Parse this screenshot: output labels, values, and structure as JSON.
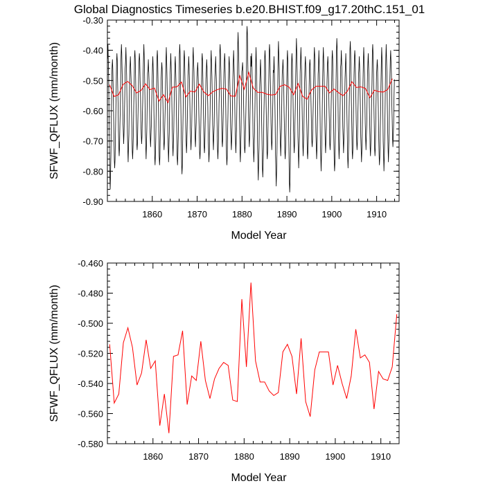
{
  "title": "Global Diagnostics Timeseries b.e20.BHIST.f09_g17.20thC.151_01",
  "chart_data": [
    {
      "type": "line",
      "xlabel": "Model Year",
      "ylabel": "SFWF_QFLUX (mm/month)",
      "xlim": [
        1850.0,
        1915.0
      ],
      "ylim": [
        -0.9,
        -0.3
      ],
      "x_ticks": [
        1860,
        1870,
        1880,
        1890,
        1900,
        1910
      ],
      "y_ticks": [
        -0.3,
        -0.4,
        -0.5,
        -0.6,
        -0.7,
        -0.8,
        -0.9
      ],
      "y_tick_labels": [
        "-0.30",
        "-0.40",
        "-0.50",
        "-0.60",
        "-0.70",
        "-0.80",
        "-0.90"
      ],
      "grid": false,
      "series": [
        {
          "resolution": "monthly",
          "color": "#000000",
          "annual_min": [
            -0.86,
            -0.79,
            -0.75,
            -0.71,
            -0.77,
            -0.76,
            -0.73,
            -0.71,
            -0.76,
            -0.72,
            -0.78,
            -0.78,
            -0.73,
            -0.77,
            -0.75,
            -0.78,
            -0.81,
            -0.74,
            -0.73,
            -0.72,
            -0.76,
            -0.74,
            -0.77,
            -0.73,
            -0.76,
            -0.72,
            -0.78,
            -0.73,
            -0.74,
            -0.77,
            -0.74,
            -0.72,
            -0.77,
            -0.83,
            -0.82,
            -0.76,
            -0.73,
            -0.85,
            -0.75,
            -0.76,
            -0.87,
            -0.74,
            -0.79,
            -0.75,
            -0.76,
            -0.72,
            -0.76,
            -0.8,
            -0.74,
            -0.73,
            -0.8,
            -0.76,
            -0.74,
            -0.79,
            -0.76,
            -0.73,
            -0.77,
            -0.73,
            -0.75,
            -0.75,
            -0.78,
            -0.8,
            -0.77,
            -0.72
          ],
          "annual_max": [
            -0.38,
            -0.43,
            -0.41,
            -0.38,
            -0.39,
            -0.42,
            -0.4,
            -0.41,
            -0.38,
            -0.43,
            -0.42,
            -0.4,
            -0.44,
            -0.39,
            -0.41,
            -0.42,
            -0.38,
            -0.4,
            -0.42,
            -0.39,
            -0.44,
            -0.41,
            -0.43,
            -0.4,
            -0.42,
            -0.38,
            -0.41,
            -0.42,
            -0.4,
            -0.34,
            -0.44,
            -0.32,
            -0.41,
            -0.39,
            -0.43,
            -0.4,
            -0.38,
            -0.42,
            -0.37,
            -0.43,
            -0.4,
            -0.41,
            -0.36,
            -0.39,
            -0.42,
            -0.43,
            -0.39,
            -0.4,
            -0.39,
            -0.42,
            -0.4,
            -0.36,
            -0.4,
            -0.41,
            -0.37,
            -0.4,
            -0.42,
            -0.39,
            -0.41,
            -0.38,
            -0.43,
            -0.39,
            -0.38,
            -0.4
          ]
        },
        {
          "resolution": "annual mean",
          "color": "#ff0000",
          "x": [
            1850.5,
            1851.5,
            1852.5,
            1853.5,
            1854.5,
            1855.5,
            1856.5,
            1857.5,
            1858.5,
            1859.5,
            1860.5,
            1861.5,
            1862.5,
            1863.5,
            1864.5,
            1865.5,
            1866.5,
            1867.5,
            1868.5,
            1869.5,
            1870.5,
            1871.5,
            1872.5,
            1873.5,
            1874.5,
            1875.5,
            1876.5,
            1877.5,
            1878.5,
            1879.5,
            1880.5,
            1881.5,
            1882.5,
            1883.5,
            1884.5,
            1885.5,
            1886.5,
            1887.5,
            1888.5,
            1889.5,
            1890.5,
            1891.5,
            1892.5,
            1893.5,
            1894.5,
            1895.5,
            1896.5,
            1897.5,
            1898.5,
            1899.5,
            1900.5,
            1901.5,
            1902.5,
            1903.5,
            1904.5,
            1905.5,
            1906.5,
            1907.5,
            1908.5,
            1909.5,
            1910.5,
            1911.5,
            1912.5,
            1913.5
          ],
          "values": [
            -0.514,
            -0.553,
            -0.547,
            -0.513,
            -0.503,
            -0.516,
            -0.541,
            -0.533,
            -0.511,
            -0.53,
            -0.525,
            -0.568,
            -0.547,
            -0.573,
            -0.522,
            -0.521,
            -0.505,
            -0.554,
            -0.535,
            -0.538,
            -0.512,
            -0.538,
            -0.55,
            -0.537,
            -0.53,
            -0.526,
            -0.528,
            -0.551,
            -0.552,
            -0.484,
            -0.529,
            -0.473,
            -0.525,
            -0.539,
            -0.539,
            -0.545,
            -0.548,
            -0.546,
            -0.519,
            -0.514,
            -0.522,
            -0.547,
            -0.51,
            -0.552,
            -0.562,
            -0.531,
            -0.519,
            -0.519,
            -0.519,
            -0.541,
            -0.528,
            -0.54,
            -0.55,
            -0.535,
            -0.504,
            -0.523,
            -0.521,
            -0.526,
            -0.557,
            -0.532,
            -0.537,
            -0.538,
            -0.529,
            -0.494
          ]
        }
      ]
    },
    {
      "type": "line",
      "xlabel": "Model Year",
      "ylabel": "SFWF_QFLUX (mm/month)",
      "xlim": [
        1850.0,
        1914.0
      ],
      "ylim": [
        -0.58,
        -0.46
      ],
      "x_ticks": [
        1860,
        1870,
        1880,
        1890,
        1900,
        1910
      ],
      "y_ticks": [
        -0.46,
        -0.48,
        -0.5,
        -0.52,
        -0.54,
        -0.56,
        -0.58
      ],
      "y_tick_labels": [
        "-0.460",
        "-0.480",
        "-0.500",
        "-0.520",
        "-0.540",
        "-0.560",
        "-0.580"
      ],
      "grid": false,
      "series": [
        {
          "resolution": "annual mean",
          "color": "#ff0000",
          "x": [
            1850.5,
            1851.5,
            1852.5,
            1853.5,
            1854.5,
            1855.5,
            1856.5,
            1857.5,
            1858.5,
            1859.5,
            1860.5,
            1861.5,
            1862.5,
            1863.5,
            1864.5,
            1865.5,
            1866.5,
            1867.5,
            1868.5,
            1869.5,
            1870.5,
            1871.5,
            1872.5,
            1873.5,
            1874.5,
            1875.5,
            1876.5,
            1877.5,
            1878.5,
            1879.5,
            1880.5,
            1881.5,
            1882.5,
            1883.5,
            1884.5,
            1885.5,
            1886.5,
            1887.5,
            1888.5,
            1889.5,
            1890.5,
            1891.5,
            1892.5,
            1893.5,
            1894.5,
            1895.5,
            1896.5,
            1897.5,
            1898.5,
            1899.5,
            1900.5,
            1901.5,
            1902.5,
            1903.5,
            1904.5,
            1905.5,
            1906.5,
            1907.5,
            1908.5,
            1909.5,
            1910.5,
            1911.5,
            1912.5,
            1913.5
          ],
          "values": [
            -0.514,
            -0.553,
            -0.547,
            -0.513,
            -0.503,
            -0.516,
            -0.541,
            -0.533,
            -0.511,
            -0.53,
            -0.525,
            -0.568,
            -0.547,
            -0.573,
            -0.522,
            -0.521,
            -0.505,
            -0.554,
            -0.535,
            -0.538,
            -0.512,
            -0.538,
            -0.55,
            -0.537,
            -0.53,
            -0.526,
            -0.528,
            -0.551,
            -0.552,
            -0.484,
            -0.529,
            -0.473,
            -0.525,
            -0.539,
            -0.539,
            -0.545,
            -0.548,
            -0.546,
            -0.519,
            -0.514,
            -0.522,
            -0.547,
            -0.51,
            -0.552,
            -0.562,
            -0.531,
            -0.519,
            -0.519,
            -0.519,
            -0.541,
            -0.528,
            -0.54,
            -0.55,
            -0.535,
            -0.504,
            -0.523,
            -0.521,
            -0.526,
            -0.557,
            -0.532,
            -0.537,
            -0.538,
            -0.529,
            -0.494
          ]
        }
      ]
    }
  ]
}
